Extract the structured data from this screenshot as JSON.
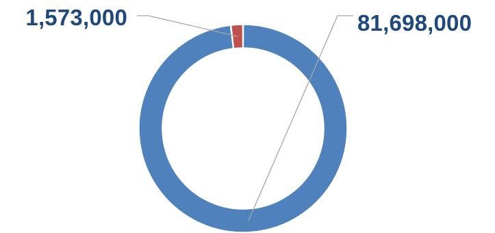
{
  "chart_data": {
    "type": "pie",
    "style": "donut",
    "title": "",
    "legend": "none",
    "slices": [
      {
        "value": 81698000,
        "label": "81,698,000",
        "color": "#4f81bd"
      },
      {
        "value": 1573000,
        "label": "1,573,000",
        "color": "#c0504d"
      }
    ],
    "label_color": "#1f497d",
    "leader_line_color": "#a6a6a6"
  }
}
